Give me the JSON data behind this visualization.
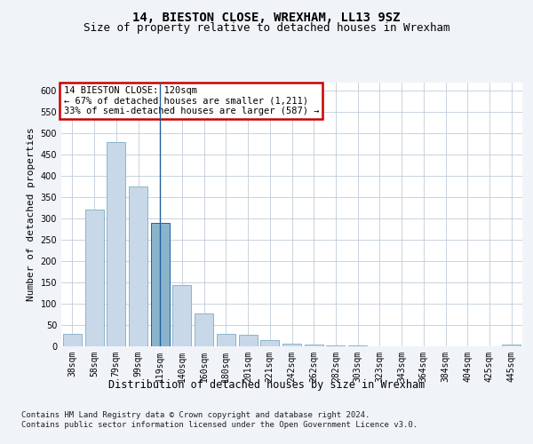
{
  "title1": "14, BIESTON CLOSE, WREXHAM, LL13 9SZ",
  "title2": "Size of property relative to detached houses in Wrexham",
  "xlabel": "Distribution of detached houses by size in Wrexham",
  "ylabel": "Number of detached properties",
  "categories": [
    "38sqm",
    "58sqm",
    "79sqm",
    "99sqm",
    "119sqm",
    "140sqm",
    "160sqm",
    "180sqm",
    "201sqm",
    "221sqm",
    "242sqm",
    "262sqm",
    "282sqm",
    "303sqm",
    "323sqm",
    "343sqm",
    "364sqm",
    "384sqm",
    "404sqm",
    "425sqm",
    "445sqm"
  ],
  "values": [
    30,
    320,
    480,
    375,
    290,
    143,
    77,
    30,
    27,
    15,
    7,
    5,
    3,
    2,
    1,
    1,
    1,
    0,
    0,
    0,
    5
  ],
  "bar_color": "#c8d8e8",
  "bar_edge_color": "#8ab4cc",
  "highlight_bar_index": 4,
  "highlight_bar_color": "#8ab4cc",
  "highlight_bar_edge_color": "#2060a0",
  "annotation_text": "14 BIESTON CLOSE: 120sqm\n← 67% of detached houses are smaller (1,211)\n33% of semi-detached houses are larger (587) →",
  "annotation_box_color": "#ffffff",
  "annotation_box_edge_color": "#cc0000",
  "ylim": [
    0,
    620
  ],
  "yticks": [
    0,
    50,
    100,
    150,
    200,
    250,
    300,
    350,
    400,
    450,
    500,
    550,
    600
  ],
  "background_color": "#f0f4f8",
  "plot_bg_color": "#ffffff",
  "footer_line1": "Contains HM Land Registry data © Crown copyright and database right 2024.",
  "footer_line2": "Contains public sector information licensed under the Open Government Licence v3.0.",
  "title1_fontsize": 10,
  "title2_fontsize": 9,
  "xlabel_fontsize": 8.5,
  "ylabel_fontsize": 8,
  "tick_fontsize": 7,
  "footer_fontsize": 6.5,
  "annotation_fontsize": 7.5
}
